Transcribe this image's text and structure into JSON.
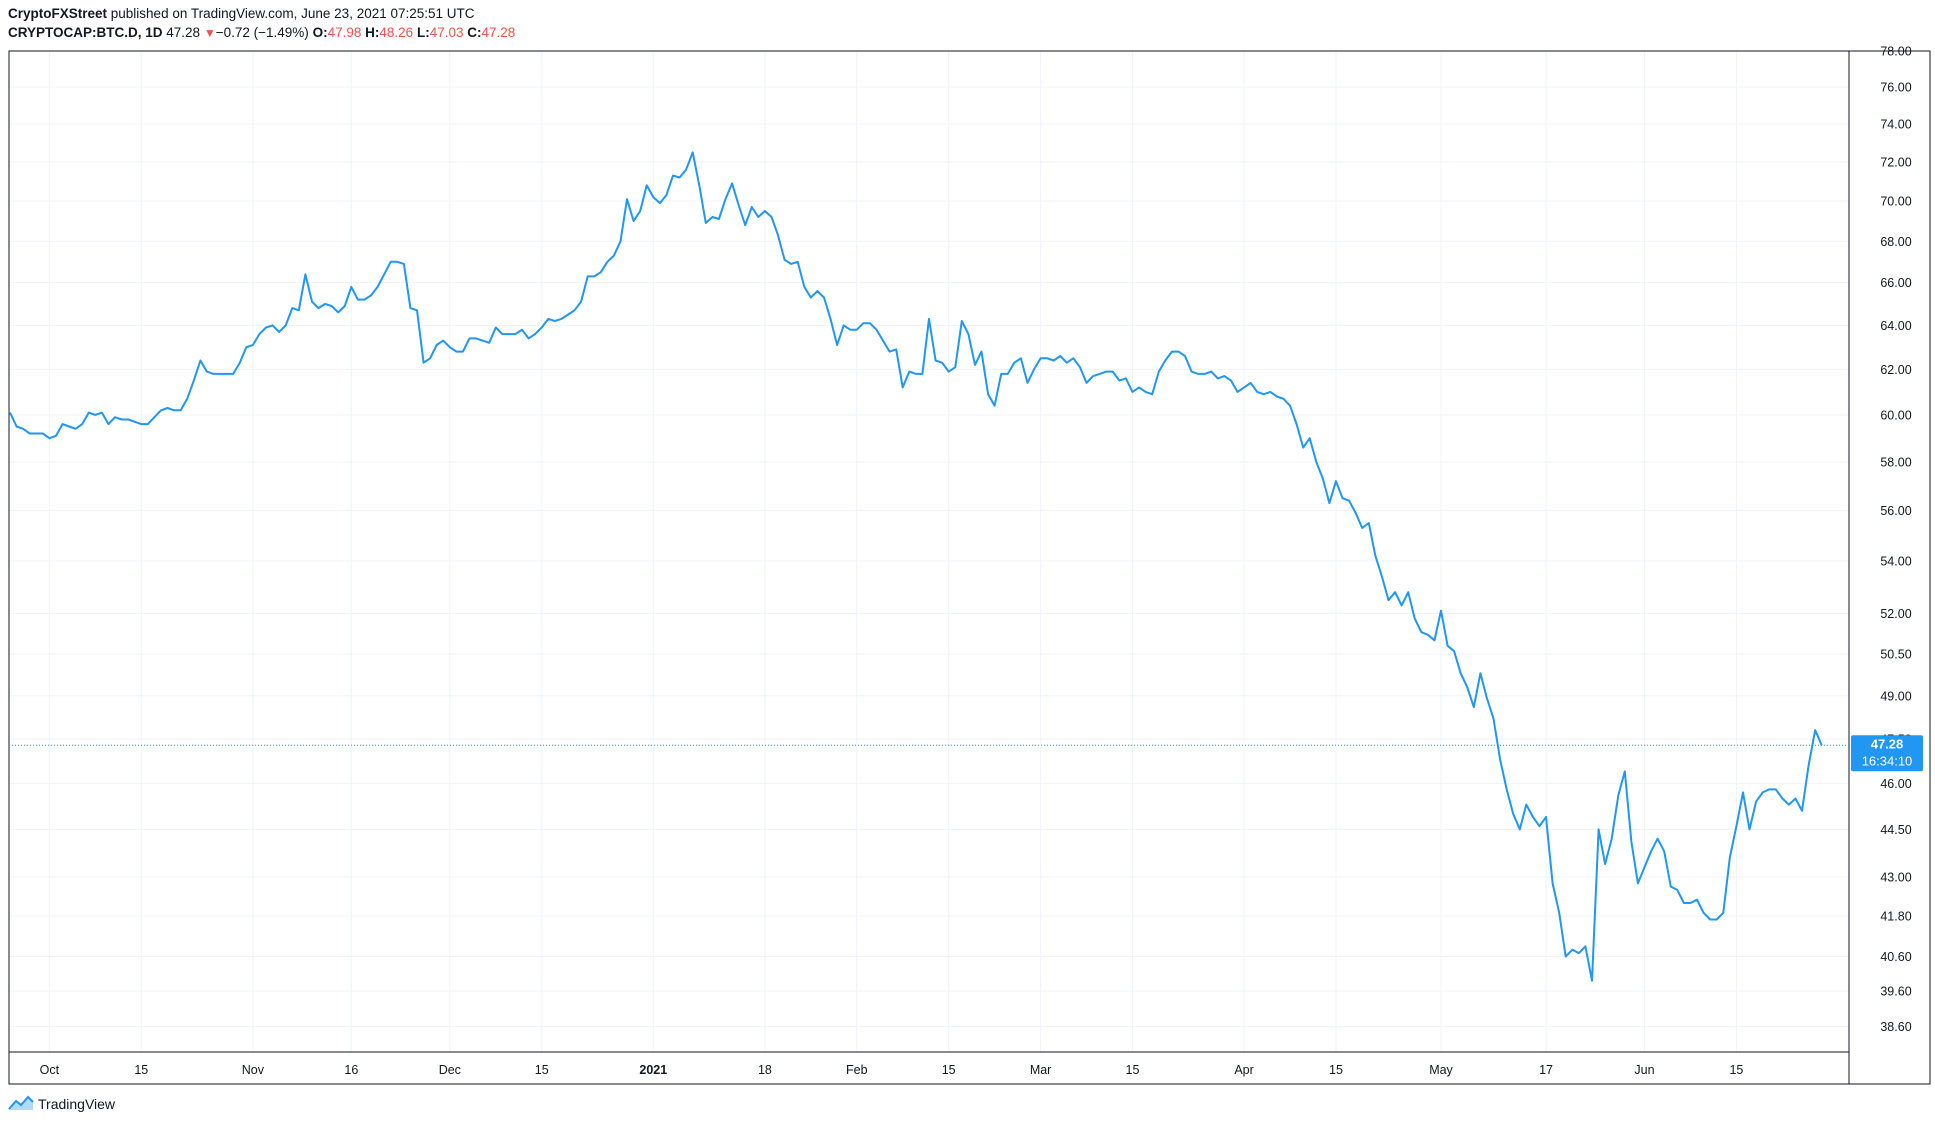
{
  "header": {
    "publisher": "CryptoFXStreet",
    "published_text": "published on TradingView.com, June 23, 2021 07:25:51 UTC",
    "symbol": "CRYPTOCAP:BTC.D, 1D",
    "last": "47.28",
    "change_arrow": "▼",
    "change": "−0.72 (−1.49%)",
    "o_label": "O:",
    "o_value": "47.98",
    "h_label": "H:",
    "h_value": "48.26",
    "l_label": "L:",
    "l_value": "47.03",
    "c_label": "C:",
    "c_value": "47.28"
  },
  "price_tag": {
    "price": "47.28",
    "countdown": "16:34:10"
  },
  "footer": {
    "brand": "TradingView",
    "logo_icon": "tradingview-logo-icon"
  },
  "colors": {
    "line": "#2196f3",
    "grid": "#f0f3fa",
    "axis_text": "#131722",
    "tag_bg": "#2196f3",
    "change_red": "#ef5350"
  },
  "chart_data": {
    "type": "line",
    "title": "CRYPTOCAP:BTC.D, 1D",
    "xlabel": "",
    "ylabel": "",
    "y_scale": "log",
    "ylim": [
      37.9,
      78.0
    ],
    "grid": true,
    "y_ticks": [
      38.6,
      39.6,
      40.6,
      41.8,
      43.0,
      44.5,
      46.0,
      47.5,
      49.0,
      50.5,
      52.0,
      54.0,
      56.0,
      58.0,
      60.0,
      62.0,
      64.0,
      66.0,
      68.0,
      70.0,
      72.0,
      74.0,
      76.0,
      78.0
    ],
    "y_tick_labels": [
      "38.60",
      "39.60",
      "40.60",
      "41.80",
      "43.00",
      "44.50",
      "46.00",
      "47.50",
      "49.00",
      "50.50",
      "52.00",
      "54.00",
      "56.00",
      "58.00",
      "60.00",
      "62.00",
      "64.00",
      "66.00",
      "68.00",
      "70.00",
      "72.00",
      "74.00",
      "76.00",
      "78.00"
    ],
    "x_tick_labels": [
      {
        "date": "2020-10-01",
        "label": "Oct",
        "bold": false
      },
      {
        "date": "2020-10-15",
        "label": "15",
        "bold": false
      },
      {
        "date": "2020-11-01",
        "label": "Nov",
        "bold": false
      },
      {
        "date": "2020-11-16",
        "label": "16",
        "bold": false
      },
      {
        "date": "2020-12-01",
        "label": "Dec",
        "bold": false
      },
      {
        "date": "2020-12-15",
        "label": "15",
        "bold": false
      },
      {
        "date": "2021-01-01",
        "label": "2021",
        "bold": true
      },
      {
        "date": "2021-01-18",
        "label": "18",
        "bold": false
      },
      {
        "date": "2021-02-01",
        "label": "Feb",
        "bold": false
      },
      {
        "date": "2021-02-15",
        "label": "15",
        "bold": false
      },
      {
        "date": "2021-03-01",
        "label": "Mar",
        "bold": false
      },
      {
        "date": "2021-03-15",
        "label": "15",
        "bold": false
      },
      {
        "date": "2021-04-01",
        "label": "Apr",
        "bold": false
      },
      {
        "date": "2021-04-15",
        "label": "15",
        "bold": false
      },
      {
        "date": "2021-05-01",
        "label": "May",
        "bold": false
      },
      {
        "date": "2021-05-17",
        "label": "17",
        "bold": false
      },
      {
        "date": "2021-06-01",
        "label": "Jun",
        "bold": false
      },
      {
        "date": "2021-06-15",
        "label": "15",
        "bold": false
      }
    ],
    "x_range": [
      "2020-09-25",
      "2021-07-02"
    ],
    "last_value": 47.28,
    "series": [
      {
        "start_date": "2020-09-25",
        "interval": "1D",
        "values": [
          60.1,
          59.5,
          59.4,
          59.2,
          59.2,
          59.2,
          59.0,
          59.1,
          59.6,
          59.5,
          59.4,
          59.6,
          60.1,
          60.0,
          60.1,
          59.6,
          59.9,
          59.8,
          59.8,
          59.7,
          59.6,
          59.6,
          59.9,
          60.2,
          60.3,
          60.2,
          60.2,
          60.7,
          61.5,
          62.4,
          61.9,
          61.8,
          61.8,
          61.8,
          61.8,
          62.3,
          63.0,
          63.1,
          63.6,
          63.9,
          64.0,
          63.7,
          64.0,
          64.8,
          64.7,
          66.4,
          65.1,
          64.8,
          65.0,
          64.9,
          64.6,
          64.9,
          65.8,
          65.2,
          65.2,
          65.4,
          65.8,
          66.4,
          67.0,
          67.0,
          66.9,
          64.8,
          64.7,
          62.3,
          62.5,
          63.1,
          63.3,
          63.0,
          62.8,
          62.8,
          63.4,
          63.4,
          63.3,
          63.2,
          63.9,
          63.6,
          63.6,
          63.6,
          63.8,
          63.4,
          63.6,
          63.9,
          64.3,
          64.2,
          64.3,
          64.5,
          64.7,
          65.1,
          66.3,
          66.3,
          66.5,
          67.0,
          67.3,
          68.0,
          70.1,
          69.0,
          69.5,
          70.8,
          70.2,
          69.9,
          70.3,
          71.3,
          71.2,
          71.6,
          72.5,
          70.8,
          68.9,
          69.2,
          69.1,
          70.1,
          70.9,
          69.8,
          68.8,
          69.7,
          69.2,
          69.5,
          69.2,
          68.3,
          67.1,
          66.9,
          67.0,
          65.8,
          65.3,
          65.6,
          65.3,
          64.3,
          63.1,
          64.0,
          63.8,
          63.8,
          64.1,
          64.1,
          63.8,
          63.3,
          62.8,
          62.9,
          61.2,
          61.9,
          61.8,
          61.8,
          64.3,
          62.4,
          62.3,
          61.9,
          62.1,
          64.2,
          63.6,
          62.2,
          62.8,
          60.9,
          60.4,
          61.8,
          61.8,
          62.3,
          62.5,
          61.4,
          62.0,
          62.5,
          62.5,
          62.4,
          62.6,
          62.3,
          62.5,
          62.1,
          61.4,
          61.7,
          61.8,
          61.9,
          61.9,
          61.5,
          61.6,
          61.0,
          61.2,
          61.0,
          60.9,
          61.9,
          62.4,
          62.8,
          62.8,
          62.6,
          61.9,
          61.8,
          61.8,
          61.9,
          61.6,
          61.7,
          61.5,
          61.0,
          61.2,
          61.4,
          61.0,
          60.9,
          61.0,
          60.8,
          60.7,
          60.4,
          59.6,
          58.6,
          59.0,
          58.0,
          57.3,
          56.3,
          57.2,
          56.5,
          56.4,
          55.9,
          55.3,
          55.5,
          54.2,
          53.4,
          52.5,
          52.8,
          52.3,
          52.8,
          51.8,
          51.3,
          51.2,
          51.0,
          52.1,
          50.8,
          50.6,
          49.8,
          49.3,
          48.6,
          49.8,
          48.9,
          48.2,
          46.8,
          45.8,
          45.0,
          44.5,
          45.3,
          44.9,
          44.6,
          44.9,
          42.8,
          41.9,
          40.6,
          40.8,
          40.7,
          40.9,
          39.9,
          44.5,
          43.4,
          44.2,
          45.6,
          46.4,
          44.1,
          42.8,
          43.3,
          43.8,
          44.2,
          43.8,
          42.7,
          42.6,
          42.2,
          42.2,
          42.3,
          41.9,
          41.7,
          41.7,
          41.9,
          43.6,
          44.6,
          45.7,
          44.5,
          45.4,
          45.7,
          45.8,
          45.8,
          45.5,
          45.3,
          45.5,
          45.1,
          46.6,
          47.8,
          47.28
        ]
      }
    ]
  }
}
